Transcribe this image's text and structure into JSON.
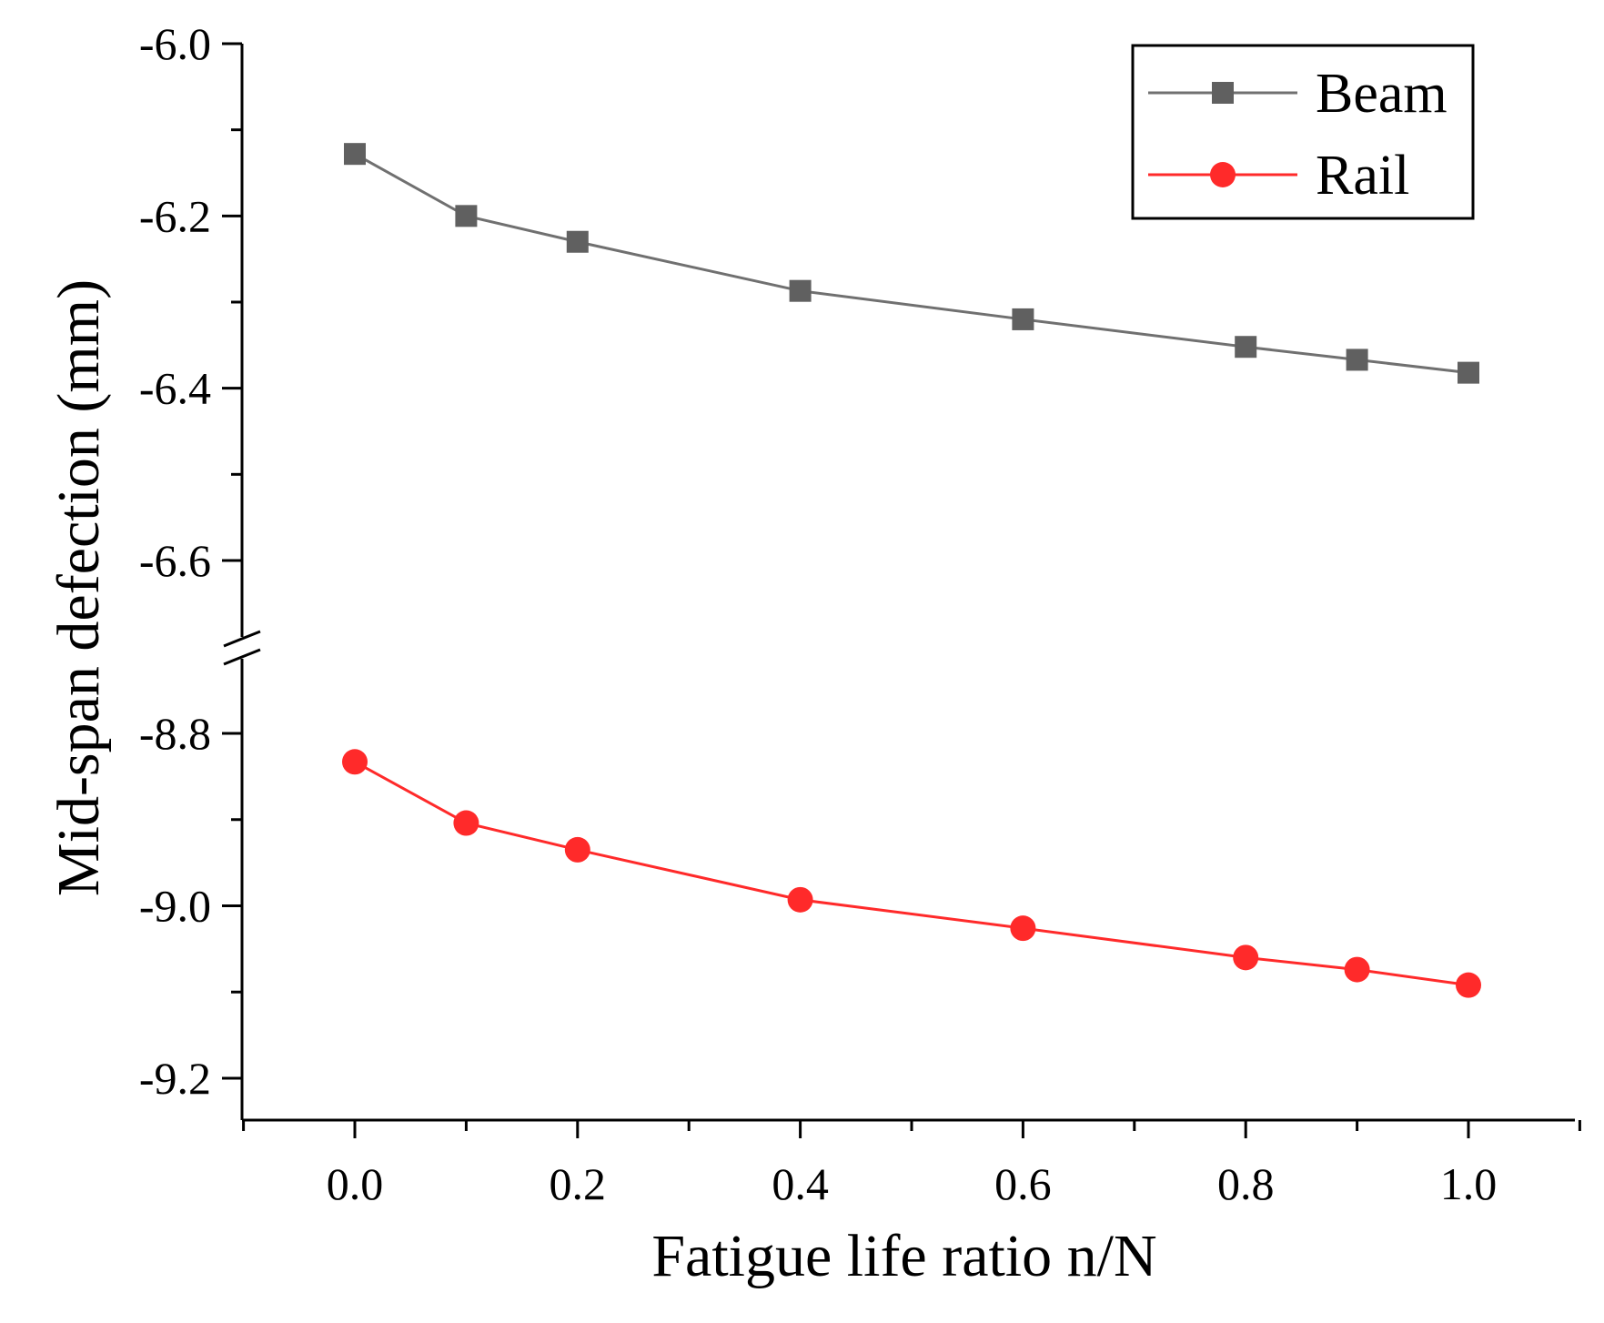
{
  "chart_data": {
    "type": "line",
    "title": "",
    "xlabel": "Fatigue life ratio n/N",
    "ylabel": "Mid-span defection (mm)",
    "x": [
      0.0,
      0.1,
      0.2,
      0.4,
      0.6,
      0.8,
      0.9,
      1.0
    ],
    "xlim": [
      -0.1,
      1.1
    ],
    "x_ticks": [
      0.0,
      0.2,
      0.4,
      0.6,
      0.8,
      1.0
    ],
    "x_tick_labels": [
      "0.0",
      "0.2",
      "0.4",
      "0.6",
      "0.8",
      "1.0"
    ],
    "y_axis_break": true,
    "y_segments": [
      {
        "range": [
          -6.7,
          -6.0
        ],
        "ticks": [
          -6.0,
          -6.2,
          -6.4,
          -6.6
        ],
        "tick_labels": [
          "-6.0",
          "-6.2",
          "-6.4",
          "-6.6"
        ]
      },
      {
        "range": [
          -9.25,
          -8.75
        ],
        "ticks": [
          -8.8,
          -9.0,
          -9.2
        ],
        "tick_labels": [
          "-8.8",
          "-9.0",
          "-9.2"
        ]
      }
    ],
    "series": [
      {
        "name": "Beam",
        "marker": "square",
        "color": "#606060",
        "line_color": "#707070",
        "values": [
          -6.128,
          -6.2,
          -6.23,
          -6.287,
          -6.32,
          -6.352,
          -6.367,
          -6.382
        ]
      },
      {
        "name": "Rail",
        "marker": "circle",
        "color": "#ff2a2a",
        "line_color": "#ff2a2a",
        "values": [
          -8.833,
          -8.904,
          -8.935,
          -8.993,
          -9.026,
          -9.06,
          -9.074,
          -9.092
        ]
      }
    ],
    "legend_position": "top-right",
    "grid": false
  }
}
